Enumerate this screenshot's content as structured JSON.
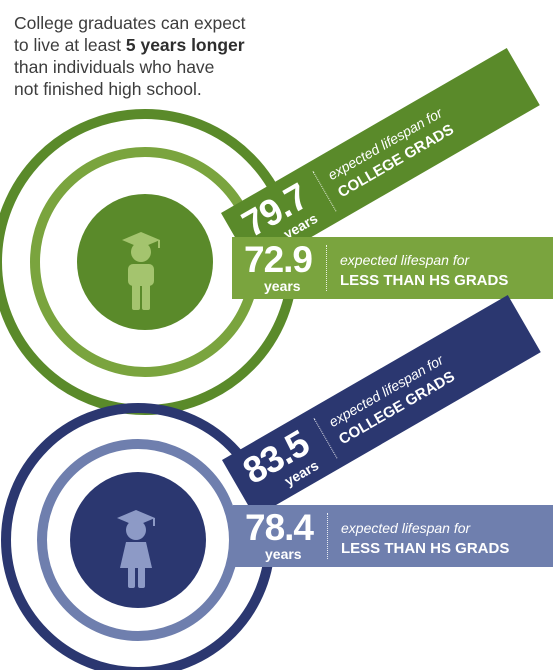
{
  "intro": {
    "line1": "College graduates can expect",
    "line2_a": "to live at least ",
    "line2_bold": "5 years longer",
    "line3": "than individuals who have",
    "line4": "not finished high school."
  },
  "colors": {
    "green_dark": "#5a8a2a",
    "green_light": "#7aa43e",
    "green_pale": "#a4c46e",
    "navy_dark": "#2b3770",
    "navy_mid": "#495a93",
    "navy_light": "#6f7fae"
  },
  "men": {
    "icon": "graduate-male-icon",
    "college": {
      "value": "79.7",
      "unit": "years",
      "caption": "expected lifespan for",
      "group": "COLLEGE GRADS"
    },
    "less_hs": {
      "value": "72.9",
      "unit": "years",
      "caption": "expected lifespan for",
      "group": "LESS THAN HS GRADS"
    }
  },
  "women": {
    "icon": "graduate-female-icon",
    "college": {
      "value": "83.5",
      "unit": "years",
      "caption": "expected lifespan for",
      "group": "COLLEGE GRADS"
    },
    "less_hs": {
      "value": "78.4",
      "unit": "years",
      "caption": "expected lifespan for",
      "group": "LESS THAN HS GRADS"
    }
  }
}
